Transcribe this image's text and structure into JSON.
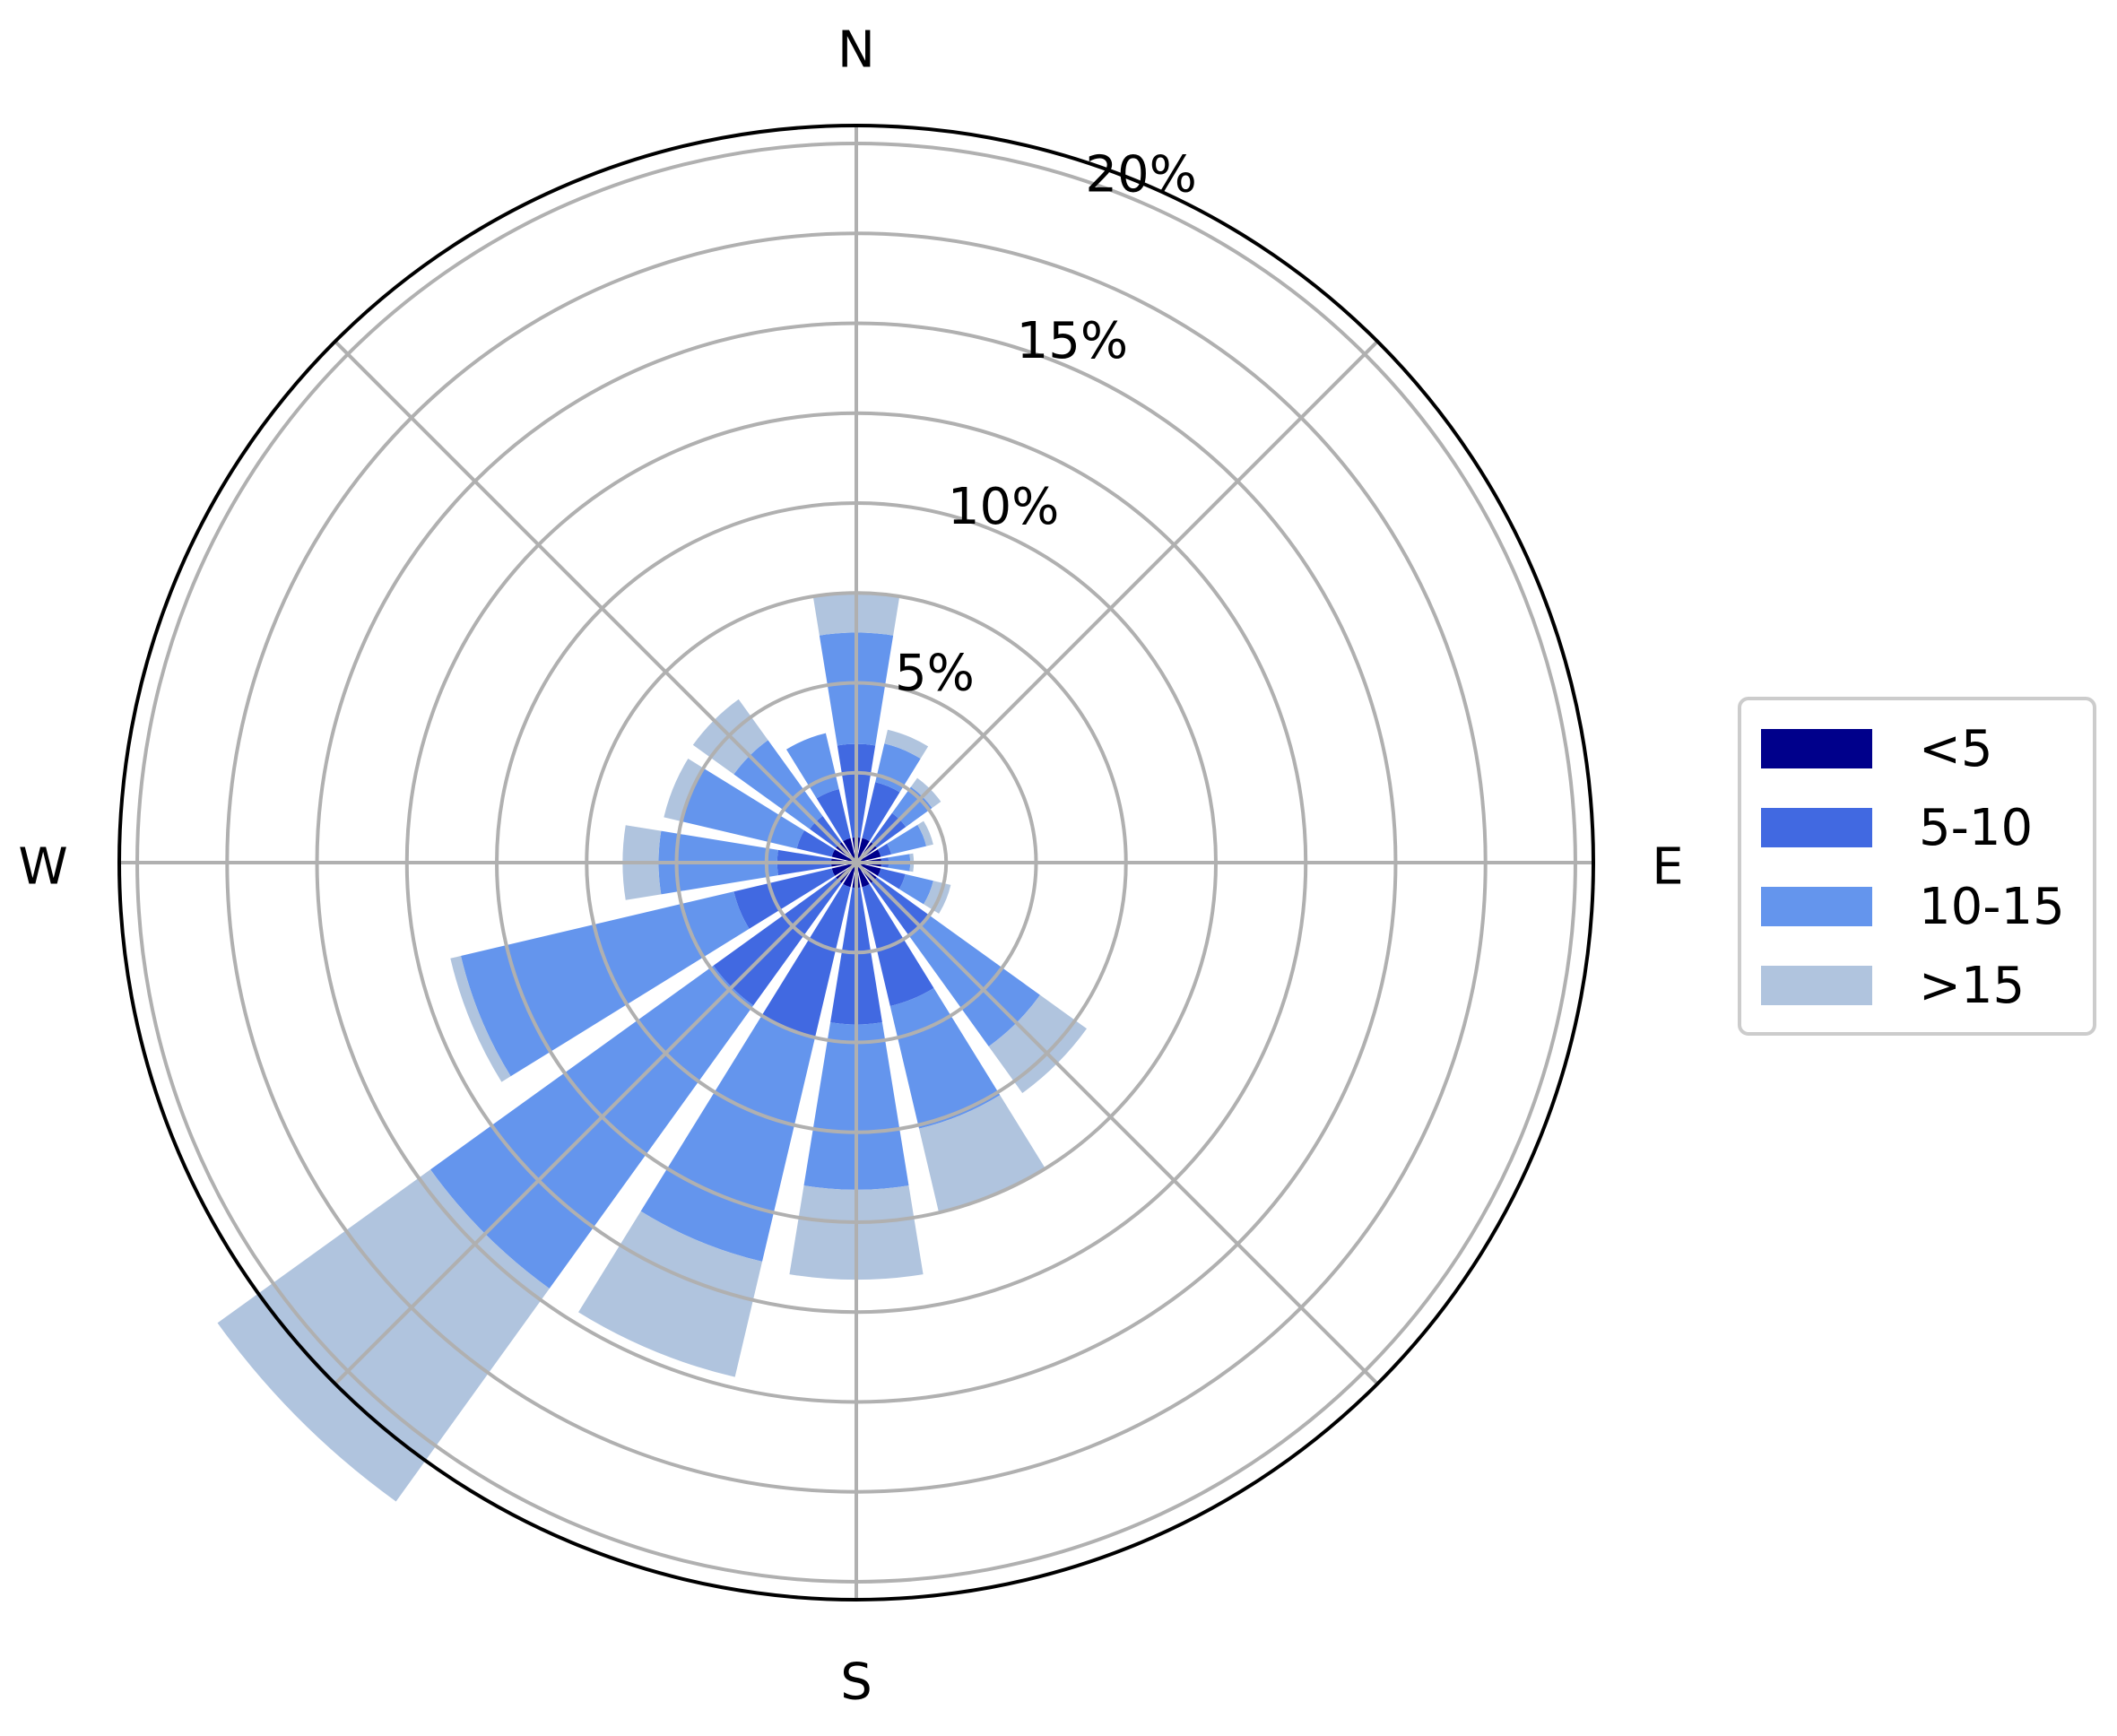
{
  "chart_data": {
    "type": "windrose",
    "directions": [
      "N",
      "NNE",
      "NE",
      "ENE",
      "E",
      "ESE",
      "SE",
      "SSE",
      "S",
      "SSW",
      "SW",
      "WSW",
      "W",
      "WNW",
      "NW",
      "NNW"
    ],
    "direction_labels": [
      "N",
      "E",
      "S",
      "W"
    ],
    "radial_ticks": [
      "5%",
      "10%",
      "15%",
      "20%"
    ],
    "radial_tick_values": [
      5,
      10,
      15,
      20
    ],
    "rmax": 20.5,
    "grid_rings": [
      2.5,
      5,
      7.5,
      10,
      12.5,
      15,
      17.5,
      20
    ],
    "grid": true,
    "legend_position": "right",
    "series": [
      {
        "name": "<5",
        "color": "#00008b",
        "values": [
          0.7,
          0.7,
          0.7,
          0.7,
          0.7,
          0.7,
          0.7,
          0.7,
          0.7,
          0.7,
          0.7,
          0.7,
          0.7,
          0.7,
          0.7,
          0.7
        ]
      },
      {
        "name": "5-10",
        "color": "#4169e1",
        "values": [
          2.6,
          1.6,
          1.0,
          0.3,
          0.2,
          0.7,
          1.8,
          3.4,
          3.8,
          4.3,
          4.2,
          2.8,
          1.5,
          1.0,
          0.9,
          1.4
        ]
      },
      {
        "name": "10-15",
        "color": "#6495ed",
        "values": [
          3.1,
          1.1,
          0.9,
          1.0,
          0.6,
          0.8,
          3.8,
          3.5,
          4.6,
          6.4,
          9.7,
          7.8,
          3.3,
          3.3,
          2.6,
          1.6
        ]
      },
      {
        "name": ">15",
        "color": "#b0c4de",
        "values": [
          1.1,
          0.4,
          0.3,
          0.2,
          0.1,
          0.5,
          1.6,
          2.4,
          2.5,
          3.3,
          7.3,
          0.3,
          1.0,
          0.5,
          1.4,
          0.0
        ]
      }
    ]
  }
}
